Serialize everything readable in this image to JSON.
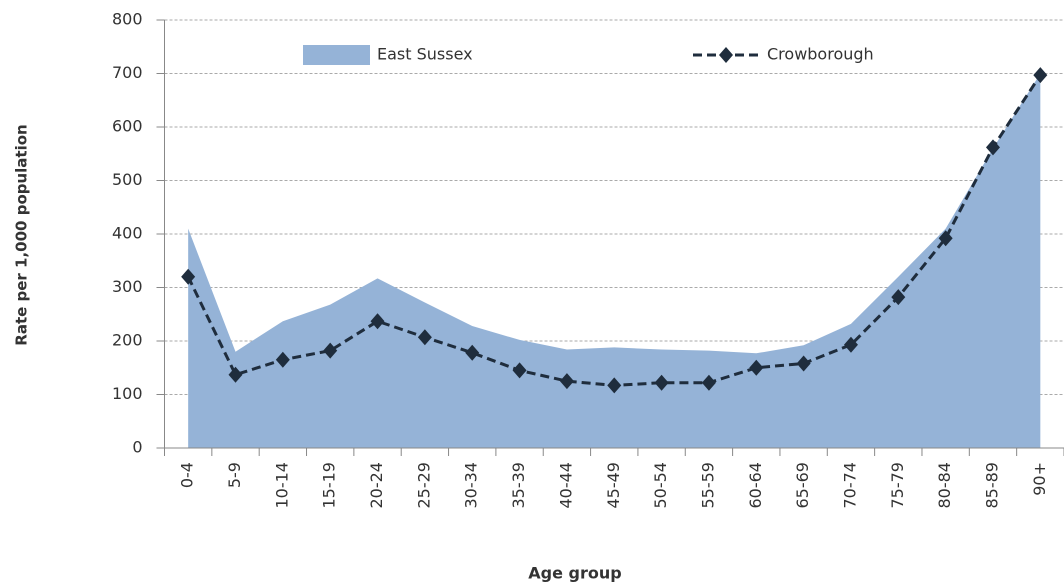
{
  "chart_data": {
    "type": "area-line",
    "x_label": "Age group",
    "y_label": "Rate per 1,000 population",
    "categories": [
      "0-4",
      "5-9",
      "10-14",
      "15-19",
      "20-24",
      "25-29",
      "30-34",
      "35-39",
      "40-44",
      "45-49",
      "50-54",
      "55-59",
      "60-64",
      "65-69",
      "70-74",
      "75-79",
      "80-84",
      "85-89",
      "90+"
    ],
    "series": [
      {
        "name": "East Sussex",
        "kind": "area",
        "color": "#95b3d7",
        "values": [
          410,
          180,
          237,
          268,
          317,
          272,
          228,
          202,
          184,
          188,
          184,
          182,
          177,
          192,
          232,
          320,
          410,
          560,
          700
        ]
      },
      {
        "name": "Crowborough",
        "kind": "line",
        "color": "#1f2d3d",
        "values": [
          320,
          137,
          165,
          182,
          237,
          207,
          178,
          145,
          125,
          117,
          122,
          122,
          150,
          158,
          193,
          282,
          392,
          562,
          697
        ]
      }
    ],
    "ylim": [
      0,
      800
    ],
    "yticks": [
      0,
      100,
      200,
      300,
      400,
      500,
      600,
      700,
      800
    ],
    "grid": true
  }
}
